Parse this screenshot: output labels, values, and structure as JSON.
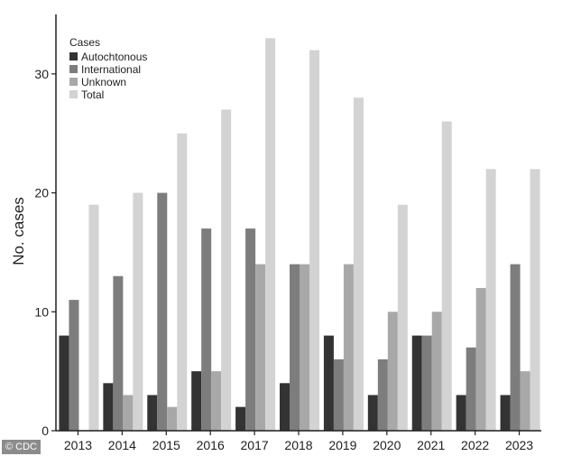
{
  "chart_data": {
    "type": "bar",
    "title": "",
    "xlabel": "",
    "ylabel": "No. cases",
    "ylim": [
      0,
      35
    ],
    "yticks": [
      0,
      10,
      20,
      30
    ],
    "grid": false,
    "legend_title": "Cases",
    "legend_position": "top-left",
    "categories": [
      "2013",
      "2014",
      "2015",
      "2016",
      "2017",
      "2018",
      "2019",
      "2020",
      "2021",
      "2022",
      "2023"
    ],
    "series": [
      {
        "name": "Autochtonous",
        "color": "#333333",
        "values": [
          8,
          4,
          3,
          5,
          2,
          4,
          8,
          3,
          8,
          3,
          3
        ]
      },
      {
        "name": "International",
        "color": "#7d7d7d",
        "values": [
          11,
          13,
          20,
          17,
          17,
          14,
          6,
          6,
          8,
          7,
          14
        ]
      },
      {
        "name": "Unknown",
        "color": "#a8a8a8",
        "values": [
          0,
          3,
          2,
          5,
          14,
          14,
          14,
          10,
          10,
          12,
          5
        ]
      },
      {
        "name": "Total",
        "color": "#d3d3d3",
        "values": [
          19,
          20,
          25,
          27,
          33,
          32,
          28,
          19,
          26,
          22,
          22
        ]
      }
    ]
  },
  "watermark": "© CDC"
}
